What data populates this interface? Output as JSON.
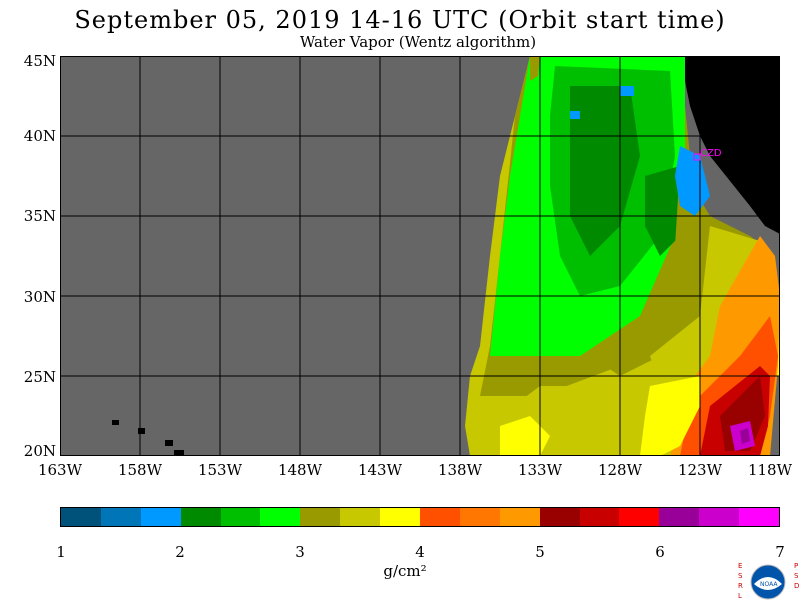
{
  "header": {
    "title": "September 05, 2019  14-16 UTC  (Orbit start time)",
    "subtitle": "Water Vapor (Wentz algorithm)"
  },
  "map": {
    "station_label": "CZD",
    "lat_labels": [
      "45N",
      "40N",
      "35N",
      "30N",
      "25N",
      "20N"
    ],
    "lon_labels": [
      "163W",
      "158W",
      "153W",
      "148W",
      "143W",
      "138W",
      "133W",
      "128W",
      "123W",
      "118W"
    ],
    "lat_range": [
      20,
      45
    ],
    "lon_range": [
      -163,
      -118
    ],
    "no_data_color": "#666666",
    "land_color": "#000000",
    "grid": true
  },
  "colorbar": {
    "unit": "g/cm²",
    "ticks": [
      "1",
      "2",
      "3",
      "4",
      "5",
      "6",
      "7"
    ],
    "range": [
      1,
      7
    ],
    "colors": [
      "#00527a",
      "#0076b8",
      "#0099ff",
      "#008a00",
      "#00bf00",
      "#00ff00",
      "#999900",
      "#c8c800",
      "#ffff00",
      "#ff5000",
      "#ff7700",
      "#ff9900",
      "#990000",
      "#c90000",
      "#ff0000",
      "#990099",
      "#cc00cc",
      "#ff00ff"
    ]
  },
  "logo": {
    "name": "noaa-logo",
    "left_text": "ESRL",
    "right_text": "PSD",
    "center_text": "NOAA"
  }
}
